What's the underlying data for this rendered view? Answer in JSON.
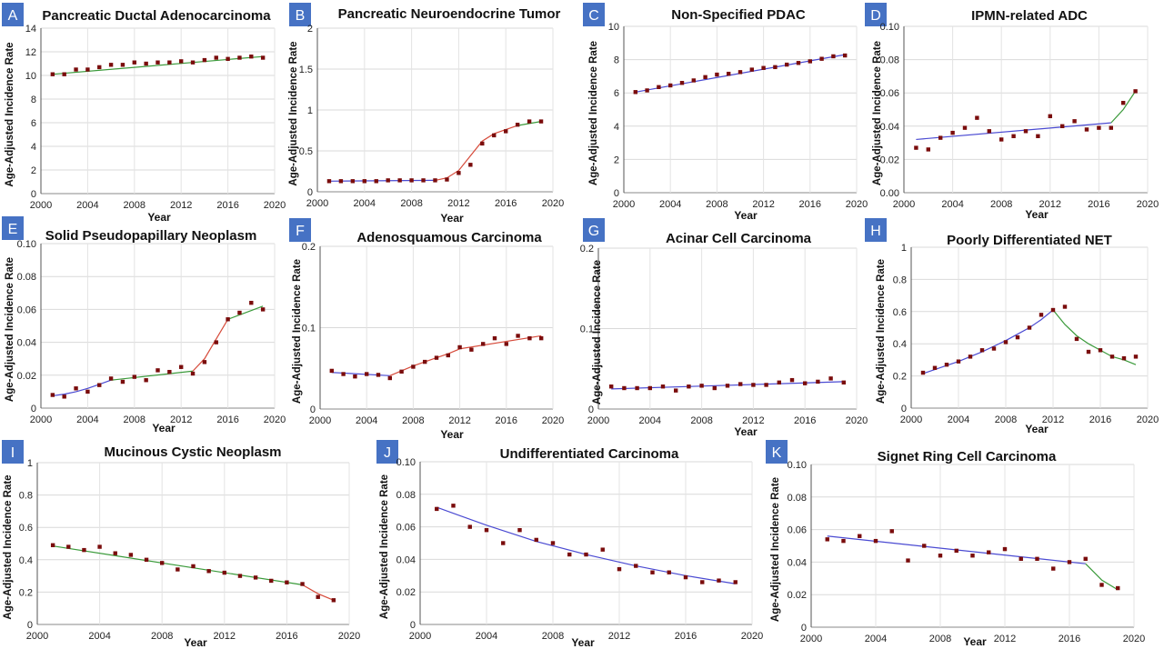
{
  "figure": {
    "ylabel": "Age-Adjusted Incidence Rate",
    "xlabel": "Year",
    "colors": {
      "green": "#3a9a3a",
      "red": "#d64a3a",
      "blue": "#4a4ad2",
      "point": "#7a0c0c",
      "badge": "#4672c4"
    }
  },
  "chart_data": [
    {
      "letter": "A",
      "title": "Pancreatic Ductal Adenocarcinoma",
      "type": "line",
      "xlim": [
        2000,
        2020
      ],
      "xticks": [
        "2000",
        "2004",
        "2008",
        "2012",
        "2016",
        "2020"
      ],
      "ylim": [
        0,
        14
      ],
      "yticks": [
        "0",
        "2",
        "4",
        "6",
        "8",
        "10",
        "12",
        "14"
      ],
      "grid": true,
      "points": {
        "x": [
          2001,
          2002,
          2003,
          2004,
          2005,
          2006,
          2007,
          2008,
          2009,
          2010,
          2011,
          2012,
          2013,
          2014,
          2015,
          2016,
          2017,
          2018,
          2019
        ],
        "y": [
          10.1,
          10.1,
          10.5,
          10.5,
          10.7,
          10.9,
          10.9,
          11.1,
          11.0,
          11.1,
          11.1,
          11.2,
          11.1,
          11.3,
          11.5,
          11.4,
          11.5,
          11.6,
          11.5
        ]
      },
      "fits": [
        {
          "color": "green",
          "x": [
            2001,
            2019
          ],
          "y": [
            10.1,
            11.6
          ]
        }
      ]
    },
    {
      "letter": "B",
      "title": "Pancreatic Neuroendocrine Tumor",
      "type": "line",
      "xlim": [
        2000,
        2020
      ],
      "xticks": [
        "2000",
        "2004",
        "2008",
        "2012",
        "2016",
        "2020"
      ],
      "ylim": [
        0,
        2
      ],
      "yticks": [
        "0",
        "0.5",
        "1",
        "1.5",
        "2"
      ],
      "grid": true,
      "points": {
        "x": [
          2001,
          2002,
          2003,
          2004,
          2005,
          2006,
          2007,
          2008,
          2009,
          2010,
          2011,
          2012,
          2013,
          2014,
          2015,
          2016,
          2017,
          2018,
          2019
        ],
        "y": [
          0.13,
          0.13,
          0.13,
          0.13,
          0.13,
          0.14,
          0.14,
          0.14,
          0.14,
          0.14,
          0.15,
          0.23,
          0.33,
          0.59,
          0.69,
          0.74,
          0.82,
          0.86,
          0.86
        ]
      },
      "fits": [
        {
          "color": "blue",
          "x": [
            2001,
            2010
          ],
          "y": [
            0.13,
            0.14
          ]
        },
        {
          "color": "red",
          "x": [
            2010,
            2011,
            2012,
            2013,
            2014,
            2015,
            2016,
            2017
          ],
          "y": [
            0.14,
            0.17,
            0.26,
            0.44,
            0.62,
            0.71,
            0.76,
            0.81
          ]
        },
        {
          "color": "green",
          "x": [
            2017,
            2019
          ],
          "y": [
            0.81,
            0.86
          ]
        }
      ]
    },
    {
      "letter": "C",
      "title": "Non-Specified PDAC",
      "type": "line",
      "xlim": [
        2000,
        2020
      ],
      "xticks": [
        "2000",
        "2004",
        "2008",
        "2012",
        "2016",
        "2020"
      ],
      "ylim": [
        0,
        10
      ],
      "yticks": [
        "0",
        "2",
        "4",
        "6",
        "8",
        "10"
      ],
      "grid": true,
      "points": {
        "x": [
          2001,
          2002,
          2003,
          2004,
          2005,
          2006,
          2007,
          2008,
          2009,
          2010,
          2011,
          2012,
          2013,
          2014,
          2015,
          2016,
          2017,
          2018,
          2019
        ],
        "y": [
          6.05,
          6.15,
          6.35,
          6.45,
          6.6,
          6.75,
          6.95,
          7.1,
          7.15,
          7.25,
          7.4,
          7.5,
          7.55,
          7.7,
          7.8,
          7.9,
          8.05,
          8.2,
          8.25
        ]
      },
      "fits": [
        {
          "color": "blue",
          "x": [
            2001,
            2019
          ],
          "y": [
            6.05,
            8.3
          ]
        }
      ]
    },
    {
      "letter": "D",
      "title": "IPMN-related ADC",
      "type": "line",
      "xlim": [
        2000,
        2020
      ],
      "xticks": [
        "2000",
        "2004",
        "2008",
        "2012",
        "2016",
        "2020"
      ],
      "ylim": [
        0,
        0.1
      ],
      "yticks": [
        "0.00",
        "0.02",
        "0.04",
        "0.06",
        "0.08",
        "0.10"
      ],
      "grid": true,
      "points": {
        "x": [
          2001,
          2002,
          2003,
          2004,
          2005,
          2006,
          2007,
          2008,
          2009,
          2010,
          2011,
          2012,
          2013,
          2014,
          2015,
          2016,
          2017,
          2018,
          2019
        ],
        "y": [
          0.027,
          0.026,
          0.033,
          0.036,
          0.039,
          0.045,
          0.037,
          0.032,
          0.034,
          0.037,
          0.034,
          0.046,
          0.04,
          0.043,
          0.038,
          0.039,
          0.039,
          0.054,
          0.061
        ]
      },
      "fits": [
        {
          "color": "blue",
          "x": [
            2001,
            2017
          ],
          "y": [
            0.032,
            0.042
          ]
        },
        {
          "color": "green",
          "x": [
            2017,
            2018,
            2019
          ],
          "y": [
            0.042,
            0.05,
            0.061
          ]
        }
      ]
    },
    {
      "letter": "E",
      "title": "Solid Pseudopapillary Neoplasm",
      "type": "line",
      "xlim": [
        2000,
        2020
      ],
      "xticks": [
        "2000",
        "2004",
        "2008",
        "2012",
        "2016",
        "2020"
      ],
      "ylim": [
        0,
        0.1
      ],
      "yticks": [
        "0",
        "0.02",
        "0.04",
        "0.06",
        "0.08",
        "0.10"
      ],
      "grid": true,
      "points": {
        "x": [
          2001,
          2002,
          2003,
          2004,
          2005,
          2006,
          2007,
          2008,
          2009,
          2010,
          2011,
          2012,
          2013,
          2014,
          2015,
          2016,
          2017,
          2018,
          2019
        ],
        "y": [
          0.008,
          0.007,
          0.012,
          0.01,
          0.014,
          0.018,
          0.016,
          0.019,
          0.017,
          0.023,
          0.022,
          0.025,
          0.021,
          0.028,
          0.04,
          0.054,
          0.058,
          0.064,
          0.06
        ]
      },
      "fits": [
        {
          "color": "blue",
          "x": [
            2001,
            2002,
            2003,
            2004,
            2005,
            2006
          ],
          "y": [
            0.0075,
            0.0085,
            0.01,
            0.012,
            0.0145,
            0.017
          ]
        },
        {
          "color": "green",
          "x": [
            2006,
            2013
          ],
          "y": [
            0.017,
            0.0225
          ]
        },
        {
          "color": "red",
          "x": [
            2013,
            2014,
            2015,
            2016
          ],
          "y": [
            0.0225,
            0.03,
            0.042,
            0.054
          ]
        },
        {
          "color": "green",
          "x": [
            2016,
            2019
          ],
          "y": [
            0.054,
            0.062
          ]
        }
      ]
    },
    {
      "letter": "F",
      "title": "Adenosquamous Carcinoma",
      "type": "line",
      "xlim": [
        2000,
        2020
      ],
      "xticks": [
        "2000",
        "2004",
        "2008",
        "2012",
        "2016",
        "2020"
      ],
      "ylim": [
        0,
        0.2
      ],
      "yticks": [
        "0",
        "0.1",
        "0.2"
      ],
      "grid": true,
      "points": {
        "x": [
          2001,
          2002,
          2003,
          2004,
          2005,
          2006,
          2007,
          2008,
          2009,
          2010,
          2011,
          2012,
          2013,
          2014,
          2015,
          2016,
          2017,
          2018,
          2019
        ],
        "y": [
          0.047,
          0.043,
          0.04,
          0.043,
          0.042,
          0.038,
          0.046,
          0.052,
          0.058,
          0.063,
          0.066,
          0.076,
          0.073,
          0.08,
          0.087,
          0.08,
          0.09,
          0.087,
          0.087
        ]
      },
      "fits": [
        {
          "color": "blue",
          "x": [
            2001,
            2006
          ],
          "y": [
            0.045,
            0.041
          ]
        },
        {
          "color": "red",
          "x": [
            2006,
            2007,
            2008,
            2009,
            2010,
            2011,
            2012
          ],
          "y": [
            0.041,
            0.047,
            0.053,
            0.058,
            0.063,
            0.068,
            0.074
          ]
        },
        {
          "color": "red",
          "x": [
            2012,
            2019
          ],
          "y": [
            0.074,
            0.09
          ]
        }
      ]
    },
    {
      "letter": "G",
      "title": "Acinar Cell Carcinoma",
      "type": "line",
      "xlim": [
        2000,
        2020
      ],
      "xticks": [
        "2000",
        "2004",
        "2008",
        "2012",
        "2016",
        "2020"
      ],
      "ylim": [
        0,
        0.2
      ],
      "yticks": [
        "0",
        "0.1",
        "0.2"
      ],
      "grid": true,
      "points": {
        "x": [
          2001,
          2002,
          2003,
          2004,
          2005,
          2006,
          2007,
          2008,
          2009,
          2010,
          2011,
          2012,
          2013,
          2014,
          2015,
          2016,
          2017,
          2018,
          2019
        ],
        "y": [
          0.028,
          0.026,
          0.026,
          0.026,
          0.028,
          0.023,
          0.028,
          0.029,
          0.026,
          0.029,
          0.031,
          0.03,
          0.03,
          0.033,
          0.036,
          0.032,
          0.034,
          0.038,
          0.033
        ]
      },
      "fits": [
        {
          "color": "blue",
          "x": [
            2001,
            2019
          ],
          "y": [
            0.025,
            0.034
          ]
        }
      ]
    },
    {
      "letter": "H",
      "title": "Poorly Differentiated NET",
      "type": "line",
      "xlim": [
        2000,
        2020
      ],
      "xticks": [
        "2000",
        "2004",
        "2008",
        "2012",
        "2016",
        "2020"
      ],
      "ylim": [
        0,
        1
      ],
      "yticks": [
        "0",
        "0.2",
        "0.4",
        "0.6",
        "0.8",
        "1"
      ],
      "grid": true,
      "points": {
        "x": [
          2001,
          2002,
          2003,
          2004,
          2005,
          2006,
          2007,
          2008,
          2009,
          2010,
          2011,
          2012,
          2013,
          2014,
          2015,
          2016,
          2017,
          2018,
          2019
        ],
        "y": [
          0.22,
          0.25,
          0.27,
          0.29,
          0.32,
          0.36,
          0.37,
          0.41,
          0.44,
          0.5,
          0.58,
          0.61,
          0.63,
          0.43,
          0.35,
          0.36,
          0.32,
          0.31,
          0.32
        ]
      },
      "fits": [
        {
          "color": "blue",
          "x": [
            2001,
            2002,
            2003,
            2004,
            2005,
            2006,
            2007,
            2008,
            2009,
            2010,
            2011,
            2012
          ],
          "y": [
            0.215,
            0.24,
            0.265,
            0.29,
            0.32,
            0.35,
            0.385,
            0.42,
            0.46,
            0.5,
            0.55,
            0.61
          ]
        },
        {
          "color": "green",
          "x": [
            2012,
            2013,
            2014,
            2015,
            2016,
            2017,
            2018,
            2019
          ],
          "y": [
            0.61,
            0.52,
            0.45,
            0.4,
            0.36,
            0.32,
            0.3,
            0.27
          ]
        }
      ]
    },
    {
      "letter": "I",
      "title": "Mucinous Cystic Neoplasm",
      "type": "line",
      "xlim": [
        2000,
        2020
      ],
      "xticks": [
        "2000",
        "2004",
        "2008",
        "2012",
        "2016",
        "2020"
      ],
      "ylim": [
        0,
        1
      ],
      "yticks": [
        "0",
        "0.2",
        "0.4",
        "0.6",
        "0.8",
        "1"
      ],
      "grid": true,
      "points": {
        "x": [
          2001,
          2002,
          2003,
          2004,
          2005,
          2006,
          2007,
          2008,
          2009,
          2010,
          2011,
          2012,
          2013,
          2014,
          2015,
          2016,
          2017,
          2018,
          2019
        ],
        "y": [
          0.49,
          0.48,
          0.46,
          0.48,
          0.44,
          0.43,
          0.4,
          0.38,
          0.34,
          0.36,
          0.33,
          0.32,
          0.3,
          0.29,
          0.27,
          0.26,
          0.25,
          0.17,
          0.15
        ]
      },
      "fits": [
        {
          "color": "green",
          "x": [
            2001,
            2017
          ],
          "y": [
            0.485,
            0.245
          ]
        },
        {
          "color": "red",
          "x": [
            2017,
            2018,
            2019
          ],
          "y": [
            0.245,
            0.19,
            0.15
          ]
        }
      ]
    },
    {
      "letter": "J",
      "title": "Undifferentiated Carcinoma",
      "type": "line",
      "xlim": [
        2000,
        2020
      ],
      "xticks": [
        "2000",
        "2004",
        "2008",
        "2012",
        "2016",
        "2020"
      ],
      "ylim": [
        0,
        0.1
      ],
      "yticks": [
        "0",
        "0.02",
        "0.04",
        "0.06",
        "0.08",
        "0.10"
      ],
      "grid": true,
      "points": {
        "x": [
          2001,
          2002,
          2003,
          2004,
          2005,
          2006,
          2007,
          2008,
          2009,
          2010,
          2011,
          2012,
          2013,
          2014,
          2015,
          2016,
          2017,
          2018,
          2019
        ],
        "y": [
          0.071,
          0.073,
          0.06,
          0.058,
          0.05,
          0.058,
          0.052,
          0.05,
          0.043,
          0.043,
          0.046,
          0.034,
          0.036,
          0.032,
          0.032,
          0.029,
          0.026,
          0.027,
          0.026
        ]
      },
      "fits": [
        {
          "color": "blue",
          "x": [
            2001,
            2004,
            2007,
            2010,
            2013,
            2016,
            2019
          ],
          "y": [
            0.072,
            0.061,
            0.051,
            0.043,
            0.036,
            0.03,
            0.025
          ]
        }
      ]
    },
    {
      "letter": "K",
      "title": "Signet Ring Cell Carcinoma",
      "type": "line",
      "xlim": [
        2000,
        2020
      ],
      "xticks": [
        "2000",
        "2004",
        "2008",
        "2012",
        "2016",
        "2020"
      ],
      "ylim": [
        0,
        0.1
      ],
      "yticks": [
        "0",
        "0.02",
        "0.04",
        "0.06",
        "0.08",
        "0.10"
      ],
      "grid": true,
      "points": {
        "x": [
          2001,
          2002,
          2003,
          2004,
          2005,
          2006,
          2007,
          2008,
          2009,
          2010,
          2011,
          2012,
          2013,
          2014,
          2015,
          2016,
          2017,
          2018,
          2019
        ],
        "y": [
          0.054,
          0.053,
          0.056,
          0.053,
          0.059,
          0.041,
          0.05,
          0.044,
          0.047,
          0.044,
          0.046,
          0.048,
          0.042,
          0.042,
          0.036,
          0.04,
          0.042,
          0.026,
          0.024
        ]
      },
      "fits": [
        {
          "color": "blue",
          "x": [
            2001,
            2017
          ],
          "y": [
            0.056,
            0.039
          ]
        },
        {
          "color": "green",
          "x": [
            2017,
            2018,
            2019
          ],
          "y": [
            0.039,
            0.029,
            0.023
          ]
        }
      ]
    }
  ]
}
